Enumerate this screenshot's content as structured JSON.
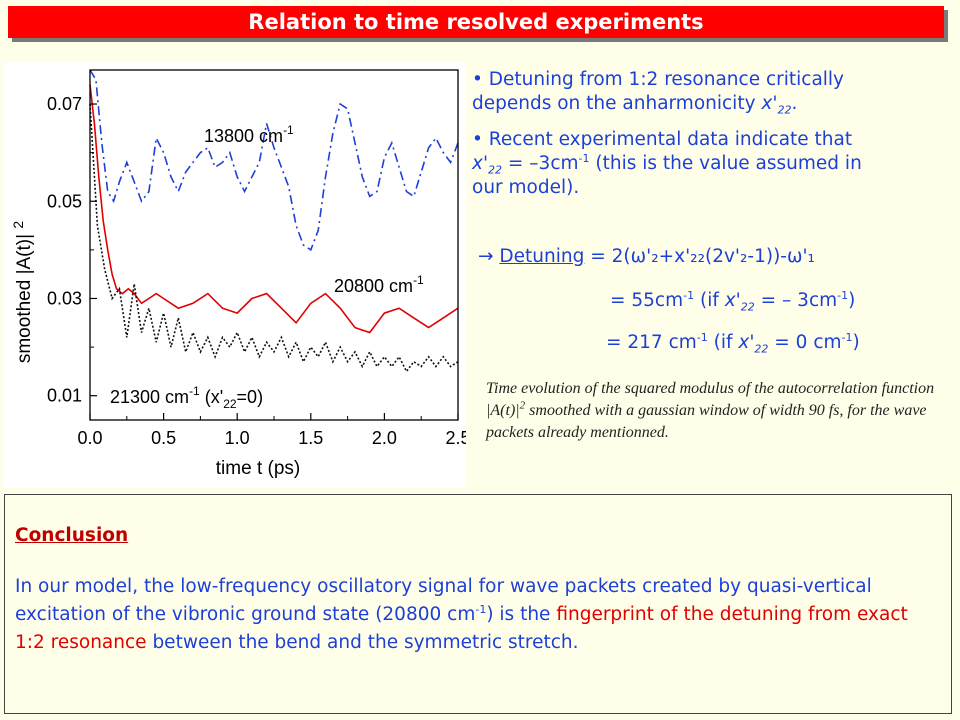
{
  "slide": {
    "title": "Relation to time resolved experiments"
  },
  "bullets": {
    "b1_line1": "Detuning from 1:2 resonance critically",
    "b1_line2": "depends on the anharmonicity",
    "b2_line1": "Recent experimental data indicate that",
    "b2_line3": "our model).",
    "b2_mid": "(this is the value assumed in",
    "eq1_rhs": "= 2(ω'₂+x'₂₂(2v'₂-1))-ω'₁",
    "eq2": "= 55cm",
    "eq3": "= 217 cm",
    "arrow": "→",
    "detuning_word": "Detuning"
  },
  "caption": {
    "text_before": "Time evolution of the squared modulus of the autocorrelation function |A(t)|",
    "text_after": " smoothed with a gaussian window of width 90 fs, for the wave packets already mentionned."
  },
  "conclusion": {
    "heading": "Conclusion",
    "text_1": "In our model, the low-frequency oscillatory signal for wave packets created by quasi-vertical excitation of the vibronic ground state (20800 cm",
    "text_2": ") is the",
    "red_text": "fingerprint of the detuning from exact 1:2 resonance",
    "text_3": "between the bend and the symmetric stretch."
  },
  "colors": {
    "title_bg": "#ff0000",
    "blue_text": "#1c3fd8",
    "red_curve": "#e00000",
    "blue_curve": "#1f3fd6",
    "black_curve": "#111111"
  },
  "chart_data": {
    "type": "line",
    "xlabel": "time t  (ps)",
    "ylabel": "smoothed |A(t)| 2",
    "xlim": [
      0.0,
      2.5
    ],
    "ylim": [
      0.005,
      0.077
    ],
    "xticks": [
      "0.0",
      "0.5",
      "1.0",
      "1.5",
      "2.0",
      "2.5"
    ],
    "yticks": [
      "0.01",
      "0.03",
      "0.05",
      "0.07"
    ],
    "series": [
      {
        "name": "13800 cm-1",
        "label_text": "13800 cm",
        "style": "dashdot",
        "color": "#1f3fd6",
        "x": [
          0.0,
          0.04,
          0.08,
          0.12,
          0.16,
          0.2,
          0.25,
          0.3,
          0.35,
          0.4,
          0.45,
          0.5,
          0.55,
          0.6,
          0.65,
          0.7,
          0.75,
          0.8,
          0.85,
          0.9,
          0.95,
          1.0,
          1.05,
          1.1,
          1.15,
          1.2,
          1.25,
          1.3,
          1.35,
          1.4,
          1.45,
          1.5,
          1.55,
          1.6,
          1.65,
          1.7,
          1.75,
          1.8,
          1.85,
          1.9,
          1.95,
          2.0,
          2.05,
          2.1,
          2.15,
          2.2,
          2.25,
          2.3,
          2.35,
          2.4,
          2.45,
          2.5
        ],
        "y": [
          0.077,
          0.075,
          0.062,
          0.052,
          0.05,
          0.054,
          0.058,
          0.054,
          0.05,
          0.052,
          0.063,
          0.06,
          0.055,
          0.052,
          0.056,
          0.058,
          0.06,
          0.061,
          0.057,
          0.058,
          0.06,
          0.055,
          0.052,
          0.055,
          0.058,
          0.066,
          0.061,
          0.057,
          0.053,
          0.045,
          0.041,
          0.04,
          0.044,
          0.055,
          0.064,
          0.07,
          0.069,
          0.062,
          0.055,
          0.051,
          0.052,
          0.059,
          0.062,
          0.057,
          0.052,
          0.051,
          0.056,
          0.061,
          0.063,
          0.06,
          0.058,
          0.062
        ]
      },
      {
        "name": "20800 cm-1",
        "label_text": "20800 cm",
        "style": "solid",
        "color": "#e00000",
        "x": [
          0.0,
          0.03,
          0.06,
          0.09,
          0.12,
          0.15,
          0.18,
          0.22,
          0.26,
          0.3,
          0.35,
          0.4,
          0.45,
          0.5,
          0.6,
          0.7,
          0.8,
          0.9,
          1.0,
          1.1,
          1.2,
          1.3,
          1.4,
          1.5,
          1.6,
          1.7,
          1.8,
          1.9,
          2.0,
          2.1,
          2.2,
          2.3,
          2.4,
          2.5
        ],
        "y": [
          0.074,
          0.066,
          0.055,
          0.046,
          0.04,
          0.035,
          0.032,
          0.031,
          0.032,
          0.031,
          0.029,
          0.03,
          0.031,
          0.03,
          0.028,
          0.029,
          0.031,
          0.028,
          0.027,
          0.03,
          0.031,
          0.028,
          0.025,
          0.029,
          0.031,
          0.028,
          0.024,
          0.023,
          0.027,
          0.028,
          0.026,
          0.024,
          0.026,
          0.028
        ]
      },
      {
        "name": "21300 cm-1 (x'22=0)",
        "label_text": "21300 cm",
        "label_tail": "(x'",
        "label_end": "=0)",
        "style": "dotted",
        "color": "#111111",
        "x": [
          0.0,
          0.05,
          0.1,
          0.15,
          0.2,
          0.25,
          0.3,
          0.35,
          0.4,
          0.45,
          0.5,
          0.55,
          0.6,
          0.65,
          0.7,
          0.75,
          0.8,
          0.85,
          0.9,
          0.95,
          1.0,
          1.05,
          1.1,
          1.15,
          1.2,
          1.25,
          1.3,
          1.35,
          1.4,
          1.45,
          1.5,
          1.55,
          1.6,
          1.65,
          1.7,
          1.75,
          1.8,
          1.85,
          1.9,
          1.95,
          2.0,
          2.05,
          2.1,
          2.15,
          2.2,
          2.25,
          2.3,
          2.35,
          2.4,
          2.45,
          2.5
        ],
        "y": [
          0.07,
          0.045,
          0.036,
          0.03,
          0.032,
          0.022,
          0.033,
          0.023,
          0.028,
          0.021,
          0.027,
          0.02,
          0.026,
          0.019,
          0.023,
          0.019,
          0.022,
          0.018,
          0.022,
          0.02,
          0.023,
          0.019,
          0.022,
          0.018,
          0.021,
          0.019,
          0.022,
          0.018,
          0.021,
          0.017,
          0.02,
          0.018,
          0.021,
          0.017,
          0.02,
          0.017,
          0.019,
          0.016,
          0.019,
          0.016,
          0.018,
          0.016,
          0.018,
          0.015,
          0.017,
          0.016,
          0.018,
          0.016,
          0.018,
          0.016,
          0.017
        ]
      }
    ]
  }
}
